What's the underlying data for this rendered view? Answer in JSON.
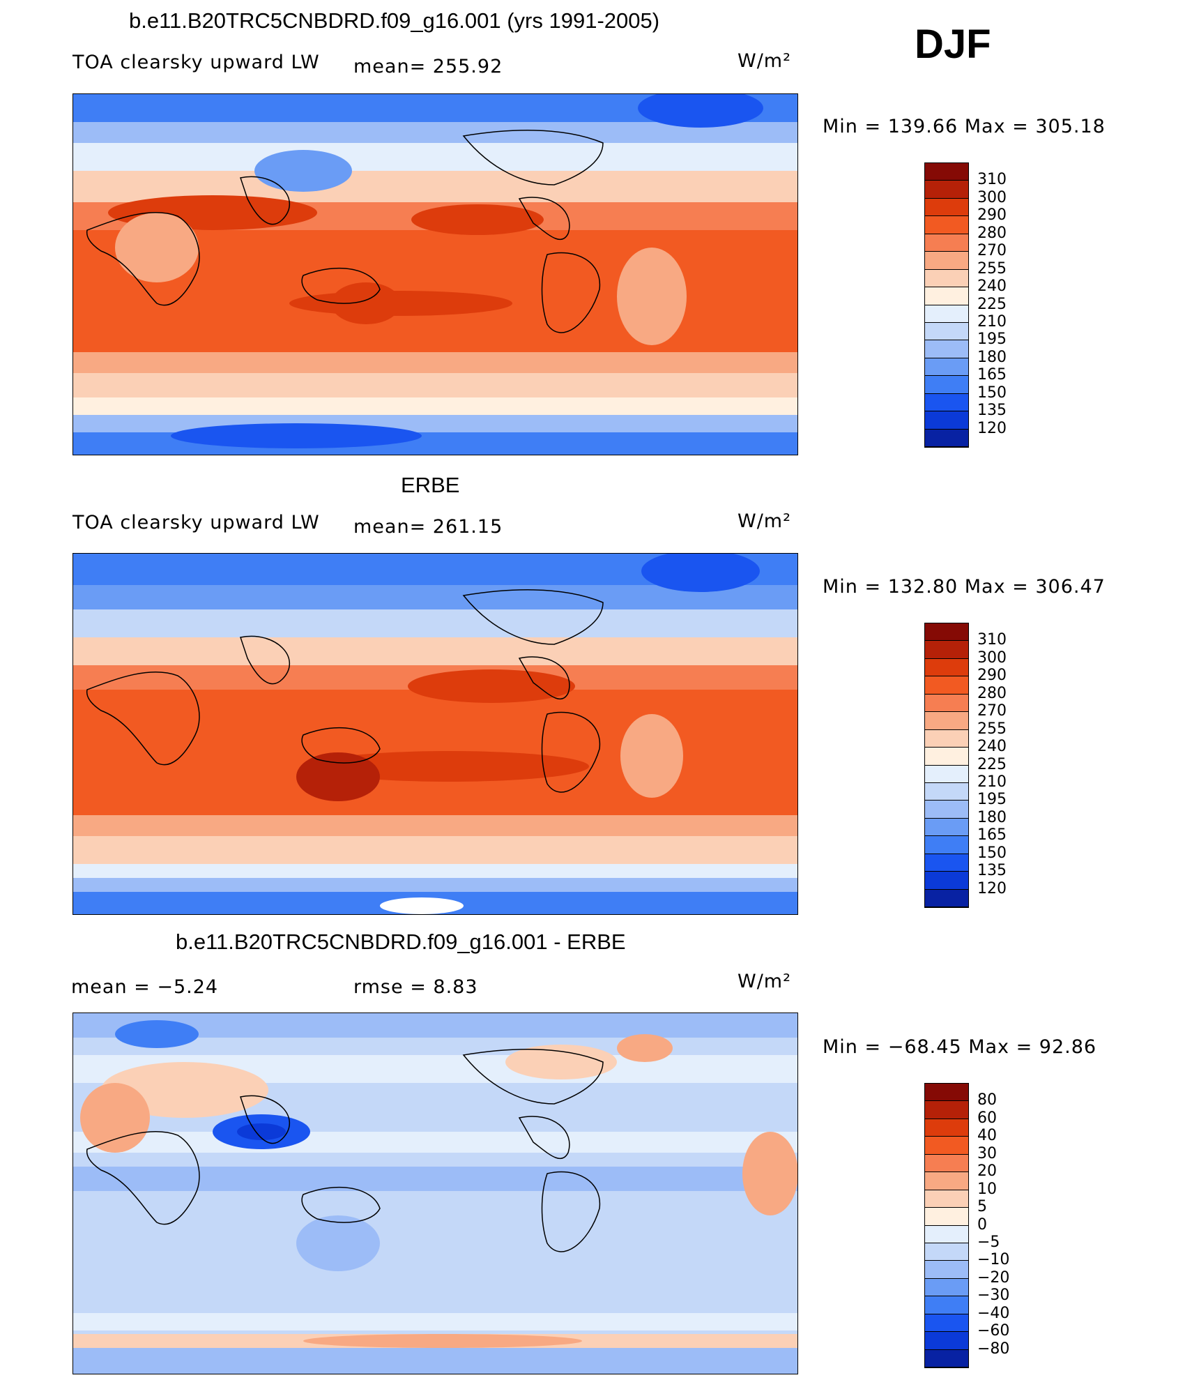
{
  "season": "DJF",
  "colors": {
    "abs_scale": [
      "#0a0a6e",
      "#0822a3",
      "#0b3ad8",
      "#1a55f0",
      "#3f7ef5",
      "#6a9cf5",
      "#9cbcf7",
      "#c4d8f8",
      "#e4effc",
      "#fff0e0",
      "#fbd0b6",
      "#f8a983",
      "#f67e52",
      "#f25a22",
      "#dd3c0c",
      "#b52108",
      "#850a05"
    ],
    "diff_scale": [
      "#0a0a6e",
      "#0822a3",
      "#0b3ad8",
      "#1a55f0",
      "#3f7ef5",
      "#6a9cf5",
      "#9cbcf7",
      "#c4d8f8",
      "#e4effc",
      "#fff0e0",
      "#fbd0b6",
      "#f8a983",
      "#f67e52",
      "#f25a22",
      "#dd3c0c",
      "#b52108",
      "#850a05"
    ]
  },
  "panels": [
    {
      "title": "b.e11.B20TRC5CNBDRD.f09_g16.001 (yrs 1991-2005)",
      "left_label": "TOA clearsky upward LW",
      "mid_label": "mean= 255.92",
      "units": "W/m²",
      "minmax": "Min  =  139.66  Max  =  305.18",
      "colorbar_ticks": [
        "310",
        "300",
        "290",
        "280",
        "270",
        "255",
        "240",
        "225",
        "210",
        "195",
        "180",
        "165",
        "150",
        "135",
        "120"
      ]
    },
    {
      "title": "ERBE",
      "left_label": "TOA clearsky upward LW",
      "mid_label": "mean= 261.15",
      "units": "W/m²",
      "minmax": "Min  =  132.80  Max  =  306.47",
      "colorbar_ticks": [
        "310",
        "300",
        "290",
        "280",
        "270",
        "255",
        "240",
        "225",
        "210",
        "195",
        "180",
        "165",
        "150",
        "135",
        "120"
      ]
    },
    {
      "title": "b.e11.B20TRC5CNBDRD.f09_g16.001 - ERBE",
      "left_label": "mean =    −5.24",
      "mid_label": "rmse =     8.83",
      "units": "W/m²",
      "minmax": "Min  =  −68.45  Max  =   92.86",
      "colorbar_ticks": [
        "80",
        "60",
        "40",
        "30",
        "20",
        "10",
        "5",
        "0",
        "−5",
        "−10",
        "−20",
        "−30",
        "−40",
        "−60",
        "−80"
      ]
    }
  ]
}
